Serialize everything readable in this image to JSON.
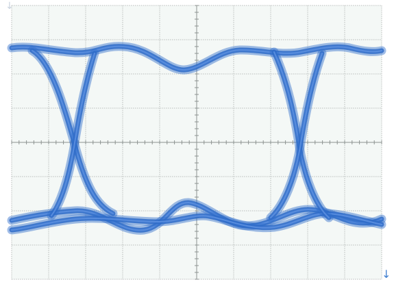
{
  "scope": {
    "display_type": "eye-diagram",
    "grid": {
      "h_divisions": 10,
      "v_divisions": 8,
      "minor_ticks_per_division": 5
    },
    "markers": {
      "top_left": "↓",
      "bottom_right": "↓"
    },
    "colors": {
      "screen_bg": "#f4f8f6",
      "grid": "#b8bdbb",
      "axis_ticks": "#8c9290",
      "trace": "#2f6cc9",
      "trace_core": "#5b8fe0",
      "marker_top": "#c9d3de",
      "marker_bottom": "#3f7fd0"
    }
  }
}
